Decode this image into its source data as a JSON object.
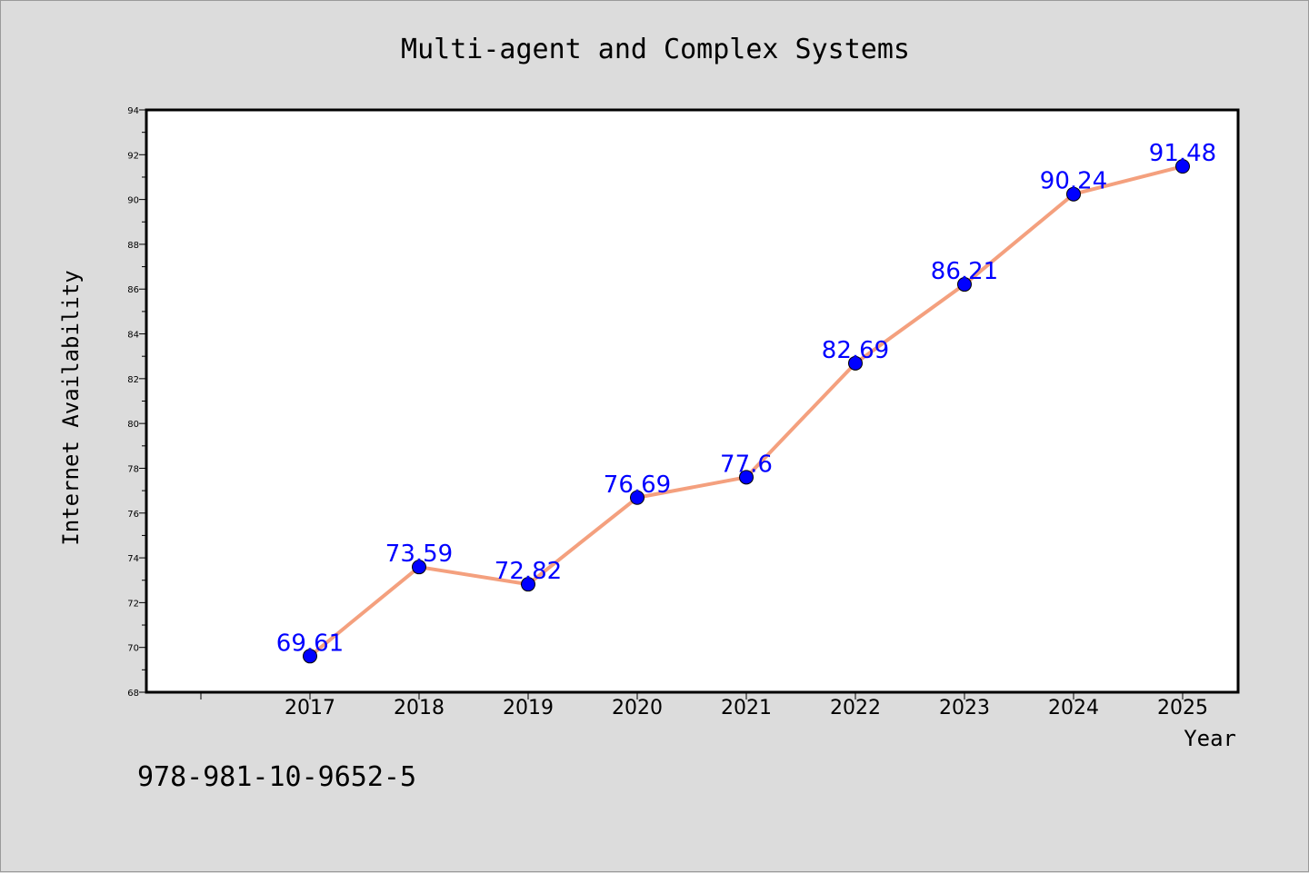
{
  "chart_data": {
    "type": "line",
    "title": "Multi-agent and Complex Systems",
    "xlabel": "Year",
    "ylabel": "Internet Availability",
    "x": [
      "2017",
      "2018",
      "2019",
      "2020",
      "2021",
      "2022",
      "2023",
      "2024",
      "2025"
    ],
    "series": [
      {
        "values": [
          69.61,
          73.59,
          72.82,
          76.69,
          77.6,
          82.69,
          86.21,
          90.24,
          91.48
        ],
        "labels": [
          "69.61",
          "73.59",
          "72.82",
          "76.69",
          "77.6",
          "82.69",
          "86.21",
          "90.24",
          "91.48"
        ]
      }
    ],
    "ylim": [
      68,
      94
    ],
    "yticks": [
      "68",
      "70",
      "72",
      "74",
      "76",
      "78",
      "80",
      "82",
      "84",
      "86",
      "88",
      "90",
      "92",
      "94"
    ],
    "grid": false,
    "colors": {
      "line": "#f4a07e",
      "marker": "#0000ff",
      "label": "#0000ff",
      "background": "#dcdcdc",
      "plot_background": "#ffffff"
    }
  },
  "footer": {
    "isbn": "978-981-10-9652-5"
  }
}
